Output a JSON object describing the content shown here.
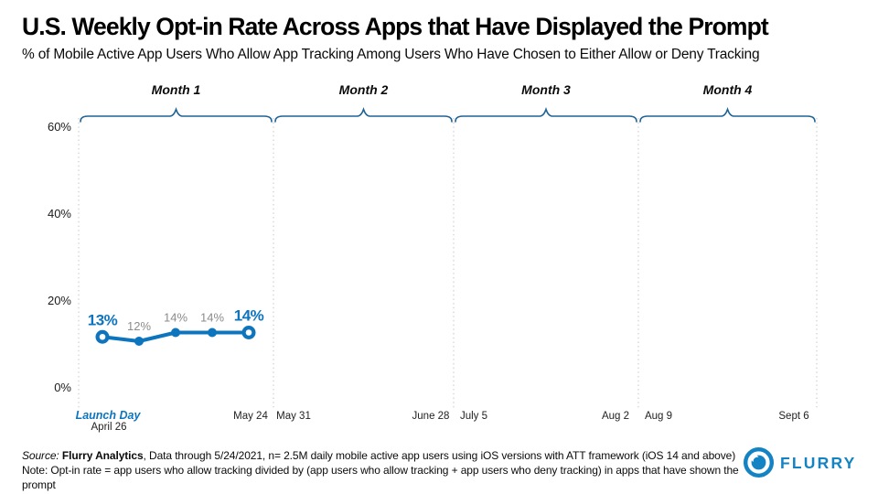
{
  "chart_data": {
    "type": "line",
    "title": "U.S. Weekly Opt-in Rate Across Apps that Have Displayed the Prompt",
    "subtitle": "% of Mobile Active App Users Who Allow App Tracking Among Users Who Have Chosen to Either Allow or Deny Tracking",
    "months": [
      {
        "label": "Month 1",
        "start_label": "Launch Day",
        "start_sublabel": "April 26",
        "end_label": "May 24"
      },
      {
        "label": "Month 2",
        "start_label": "May 31",
        "end_label": "June 28"
      },
      {
        "label": "Month 3",
        "start_label": "July 5",
        "end_label": "Aug 2"
      },
      {
        "label": "Month 4",
        "start_label": "Aug 9",
        "end_label": "Sept 6"
      }
    ],
    "y_axis": {
      "tick_labels": [
        "0%",
        "20%",
        "40%",
        "60%"
      ],
      "tick_values": [
        0,
        20,
        40,
        60
      ],
      "range": [
        0,
        63
      ]
    },
    "series": [
      {
        "values": [
          13,
          12,
          14,
          14,
          14
        ],
        "point_labels": [
          "13%",
          "12%",
          "14%",
          "14%",
          "14%"
        ],
        "emphasized": [
          true,
          false,
          false,
          false,
          true
        ]
      }
    ],
    "legend": "none",
    "grid": "dotted vertical month separators",
    "colors": {
      "line": "#0D74BE",
      "emphasis_label": "#0D74BE",
      "plain_label": "#8C8C8C",
      "brace": "#1E6396",
      "grid_line": "#C6C6C6",
      "axis_text": "#1a1a1a"
    }
  },
  "footer": {
    "source_prefix": "Source:",
    "source_bold": "Flurry Analytics",
    "source_rest": ", Data through 5/24/2021, n= 2.5M daily mobile active app users using iOS versions with ATT framework (iOS 14 and above)",
    "note": "Note: Opt-in rate = app users who allow tracking divided by (app users who allow tracking + app users who deny tracking) in apps that have shown the prompt"
  },
  "logo": {
    "text": "FLURRY",
    "color": "#1483C4"
  }
}
